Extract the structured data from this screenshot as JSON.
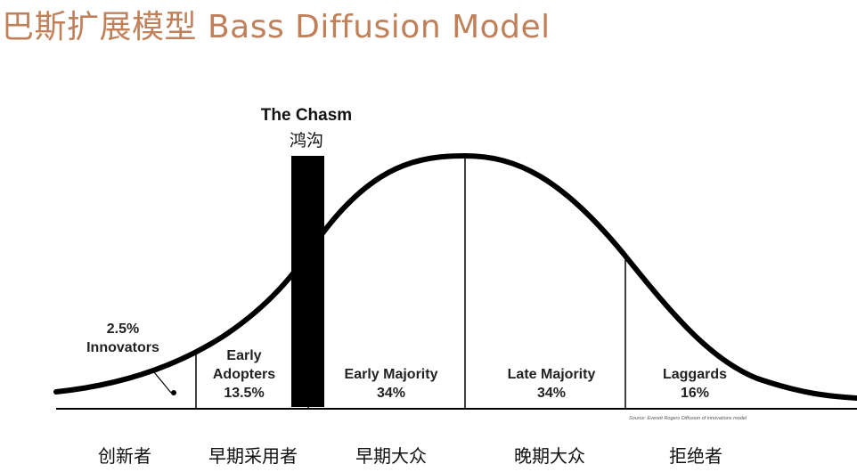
{
  "title": "巴斯扩展模型 Bass Diffusion Model",
  "chasm": {
    "label_en": "The Chasm",
    "label_cn": "鸿沟"
  },
  "segments": [
    {
      "id": "innovators",
      "percent": "2.5%",
      "label": "Innovators",
      "label_cn": "创新者",
      "share": 2.5
    },
    {
      "id": "early-adopters",
      "label_line1": "Early",
      "label_line2": "Adopters",
      "percent": "13.5%",
      "label_cn": "早期采用者",
      "share": 13.5
    },
    {
      "id": "early-majority",
      "label": "Early Majority",
      "percent": "34%",
      "label_cn": "早期大众",
      "share": 34
    },
    {
      "id": "late-majority",
      "label": "Late Majority",
      "percent": "34%",
      "label_cn": "晚期大众",
      "share": 34
    },
    {
      "id": "laggards",
      "label": "Laggards",
      "percent": "16%",
      "label_cn": "拒绝者",
      "share": 16
    }
  ],
  "source": "Source: Everett Rogers Diffusion of innovations model",
  "colors": {
    "title": "#c0805a",
    "curve": "#000000",
    "chasm": "#000000"
  }
}
